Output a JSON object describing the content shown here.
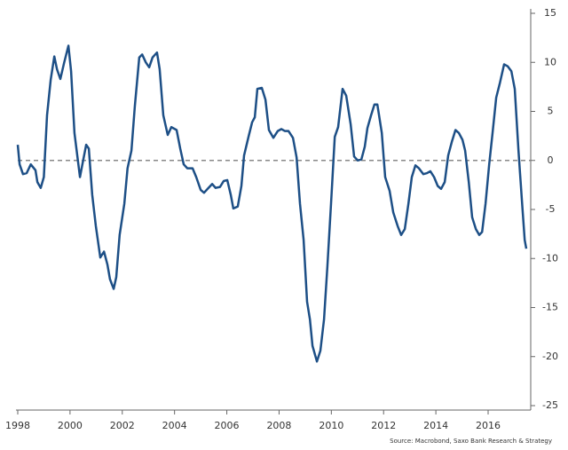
{
  "chart_data": {
    "type": "line",
    "source": "Source: Macrobond, Saxo Bank Research & Strategy",
    "xlim": [
      1998,
      2017.63
    ],
    "xticks": [
      1998,
      2000,
      2002,
      2004,
      2006,
      2008,
      2010,
      2012,
      2014,
      2016
    ],
    "ylim": [
      -25,
      15
    ],
    "yticks": [
      -25,
      -20,
      -15,
      -10,
      -5,
      0,
      5,
      10,
      15
    ],
    "y_axis_side": "right",
    "zero_line": true,
    "x": [
      1998.0,
      1998.07,
      1998.2,
      1998.34,
      1998.5,
      1998.68,
      1998.75,
      1998.88,
      1999.0,
      1999.12,
      1999.26,
      1999.4,
      1999.5,
      1999.63,
      1999.77,
      1999.94,
      2000.04,
      2000.17,
      2000.38,
      2000.51,
      2000.62,
      2000.72,
      2000.85,
      2000.99,
      2001.16,
      2001.3,
      2001.43,
      2001.53,
      2001.67,
      2001.77,
      2001.9,
      2002.08,
      2002.2,
      2002.35,
      2002.48,
      2002.65,
      2002.76,
      2002.9,
      2003.03,
      2003.16,
      2003.33,
      2003.43,
      2003.57,
      2003.74,
      2003.88,
      2004.08,
      2004.22,
      2004.35,
      2004.49,
      2004.69,
      2004.83,
      2005.0,
      2005.13,
      2005.3,
      2005.44,
      2005.57,
      2005.74,
      2005.88,
      2006.02,
      2006.15,
      2006.25,
      2006.42,
      2006.56,
      2006.66,
      2006.83,
      2006.97,
      2007.07,
      2007.17,
      2007.34,
      2007.48,
      2007.61,
      2007.78,
      2007.95,
      2008.09,
      2008.22,
      2008.36,
      2008.53,
      2008.67,
      2008.8,
      2008.94,
      2009.07,
      2009.18,
      2009.28,
      2009.45,
      2009.58,
      2009.72,
      2009.85,
      2009.99,
      2010.13,
      2010.26,
      2010.43,
      2010.57,
      2010.74,
      2010.87,
      2011.01,
      2011.15,
      2011.28,
      2011.38,
      2011.52,
      2011.65,
      2011.76,
      2011.93,
      2012.06,
      2012.23,
      2012.37,
      2012.54,
      2012.67,
      2012.81,
      2012.95,
      2013.08,
      2013.22,
      2013.35,
      2013.52,
      2013.66,
      2013.79,
      2013.93,
      2014.07,
      2014.2,
      2014.34,
      2014.47,
      2014.61,
      2014.75,
      2014.88,
      2015.02,
      2015.12,
      2015.26,
      2015.39,
      2015.53,
      2015.66,
      2015.77,
      2015.9,
      2016.04,
      2016.17,
      2016.31,
      2016.44,
      2016.61,
      2016.75,
      2016.89,
      2017.02,
      2017.16,
      2017.29,
      2017.4,
      2017.46
    ],
    "series": [
      {
        "color": "#1d4f86",
        "values": [
          1.6,
          -0.4,
          -1.4,
          -1.3,
          -0.4,
          -1.0,
          -2.2,
          -2.8,
          -1.7,
          4.6,
          8.2,
          10.6,
          9.3,
          8.3,
          9.9,
          11.7,
          9.1,
          2.8,
          -1.7,
          0.1,
          1.6,
          1.2,
          -3.5,
          -6.7,
          -9.9,
          -9.3,
          -10.6,
          -12.1,
          -13.1,
          -11.9,
          -7.6,
          -4.4,
          -0.8,
          1.0,
          5.5,
          10.5,
          10.8,
          10.0,
          9.5,
          10.5,
          11.0,
          9.3,
          4.6,
          2.6,
          3.4,
          3.1,
          1.2,
          -0.4,
          -0.8,
          -0.8,
          -1.7,
          -3.0,
          -3.3,
          -2.8,
          -2.4,
          -2.8,
          -2.7,
          -2.1,
          -2.0,
          -3.5,
          -4.9,
          -4.7,
          -2.6,
          0.5,
          2.4,
          3.9,
          4.4,
          7.3,
          7.4,
          6.2,
          3.1,
          2.3,
          3.0,
          3.2,
          3.0,
          3.0,
          2.3,
          0.3,
          -4.4,
          -8.1,
          -14.4,
          -16.2,
          -18.9,
          -20.5,
          -19.4,
          -16.2,
          -10.8,
          -4.4,
          2.4,
          3.4,
          7.3,
          6.6,
          3.7,
          0.4,
          0,
          0.1,
          1.4,
          3.3,
          4.6,
          5.7,
          5.7,
          2.8,
          -1.7,
          -3.1,
          -5.3,
          -6.7,
          -7.6,
          -7.0,
          -4.4,
          -1.7,
          -0.5,
          -0.8,
          -1.4,
          -1.3,
          -1.1,
          -1.7,
          -2.6,
          -2.9,
          -2.2,
          0.5,
          1.9,
          3.1,
          2.8,
          2.1,
          1.0,
          -2.2,
          -5.8,
          -7.0,
          -7.6,
          -7.3,
          -4.4,
          -0.4,
          2.8,
          6.4,
          7.8,
          9.8,
          9.6,
          9.1,
          7.3,
          1.0,
          -4.0,
          -8.1,
          -9.0
        ]
      }
    ]
  }
}
